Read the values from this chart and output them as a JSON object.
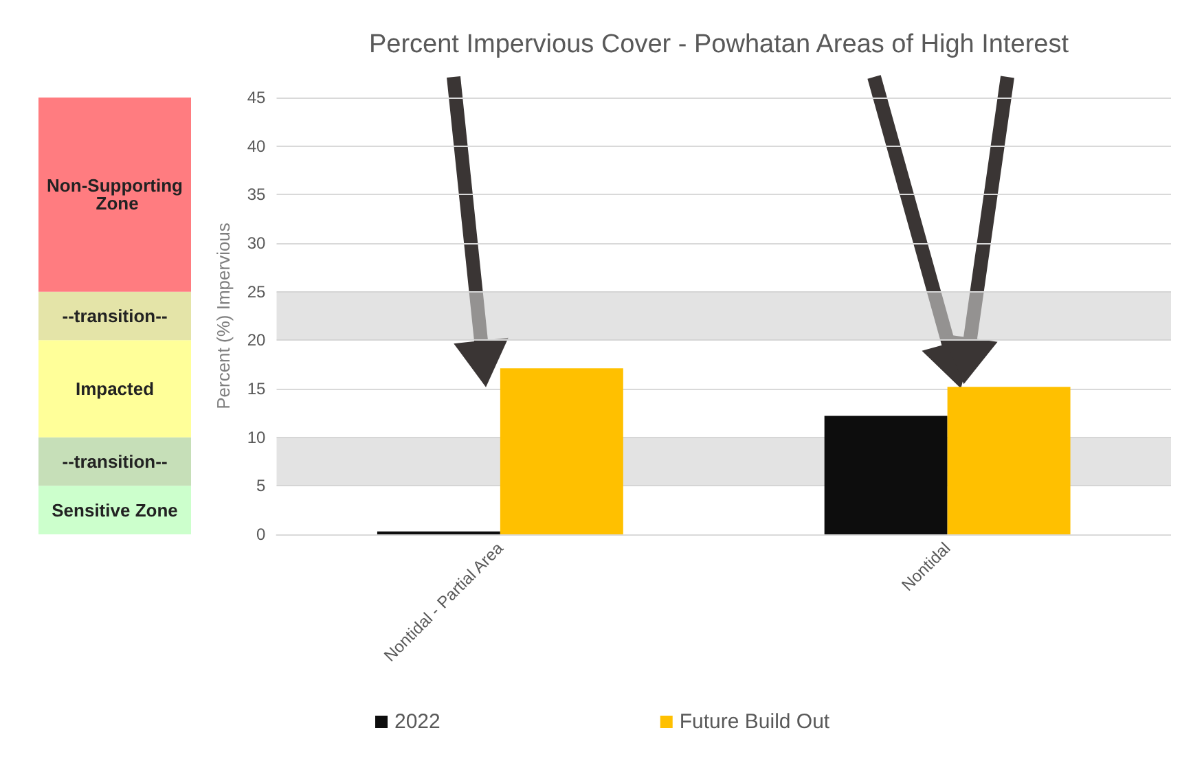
{
  "chart_data": [
    {
      "type": "bar",
      "stacked": true,
      "categories": [
        null
      ],
      "tick_labels": false,
      "ylim": [
        0,
        45
      ],
      "series": [
        {
          "name": "Sensitive Zone",
          "color": "#ccffcc",
          "values": [
            5
          ]
        },
        {
          "name": "--transition--",
          "color": "#c6dfb8",
          "values": [
            5
          ]
        },
        {
          "name": "Impacted",
          "color": "#ffff99",
          "values": [
            10
          ]
        },
        {
          "name": "--transition--",
          "color": "#e4e4a8",
          "values": [
            5
          ]
        },
        {
          "name": "Non-Supporting Zone",
          "color": "#ff7c80",
          "values": [
            20
          ]
        }
      ]
    },
    {
      "type": "bar",
      "title": "Percent Impervious Cover - Powhatan Areas of High Interest",
      "ylabel": "Percent (%) Impervious",
      "categories": [
        "Nontidal - Partial Area",
        "Nontidal"
      ],
      "series": [
        {
          "name": "2022",
          "color": "#0d0d0d",
          "values": [
            0.3,
            12.2
          ]
        },
        {
          "name": "Future Build Out",
          "color": "#ffc000",
          "values": [
            17.1,
            15.2
          ]
        }
      ],
      "ylim": [
        0,
        45
      ],
      "yticks": [
        0,
        5,
        10,
        15,
        20,
        25,
        30,
        35,
        40,
        45
      ],
      "grid": "y",
      "legend": "bottom",
      "bands": [
        {
          "axis": "y",
          "from": 5,
          "to": 10,
          "color": "#d0d0d0"
        },
        {
          "axis": "y",
          "from": 20,
          "to": 25,
          "color": "#d0d0d0"
        }
      ]
    }
  ]
}
